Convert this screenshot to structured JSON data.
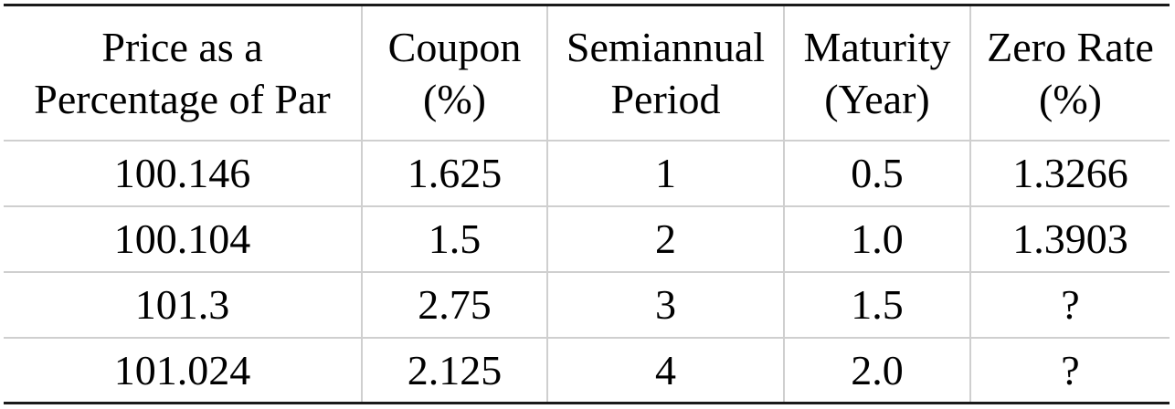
{
  "table": {
    "headers": [
      {
        "line1": "Price as a",
        "line2": "Percentage of Par"
      },
      {
        "line1": "Coupon",
        "line2": "(%)"
      },
      {
        "line1": "Semiannual",
        "line2": "Period"
      },
      {
        "line1": "Maturity",
        "line2": "(Year)"
      },
      {
        "line1": "Zero Rate",
        "line2": "(%)"
      }
    ],
    "rows": [
      [
        "100.146",
        "1.625",
        "1",
        "0.5",
        "1.3266"
      ],
      [
        "100.104",
        "1.5",
        "2",
        "1.0",
        "1.3903"
      ],
      [
        "101.3",
        "2.75",
        "3",
        "1.5",
        "?"
      ],
      [
        "101.024",
        "2.125",
        "4",
        "2.0",
        "?"
      ]
    ]
  }
}
